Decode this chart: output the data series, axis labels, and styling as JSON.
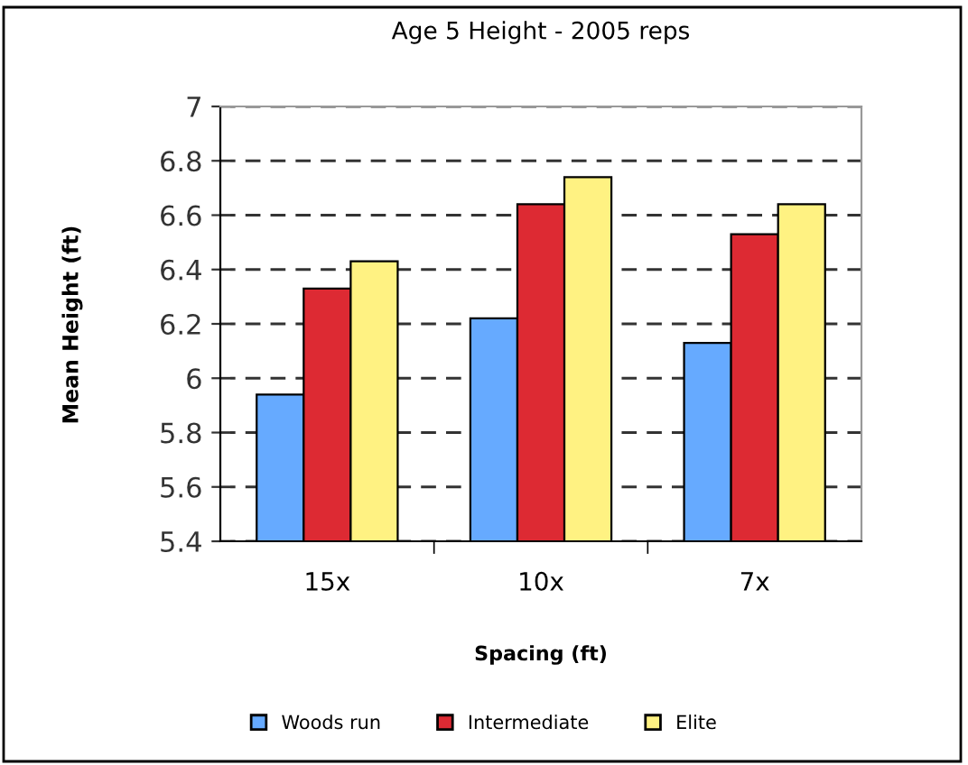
{
  "chart_data": {
    "type": "bar",
    "title": "Age 5 Height - 2005 reps",
    "xlabel": "Spacing (ft)",
    "ylabel": "Mean Height (ft)",
    "categories": [
      "15x",
      "10x",
      "7x"
    ],
    "series": [
      {
        "name": "Woods run",
        "color": "#66aaff",
        "values": [
          5.94,
          6.22,
          6.13
        ]
      },
      {
        "name": "Intermediate",
        "color": "#dd2a33",
        "values": [
          6.33,
          6.64,
          6.53
        ]
      },
      {
        "name": "Elite",
        "color": "#fff282",
        "values": [
          6.43,
          6.74,
          6.64
        ]
      }
    ],
    "ylim": [
      5.4,
      7
    ],
    "yticks": [
      5.4,
      5.6,
      5.8,
      6,
      6.2,
      6.4,
      6.6,
      6.8,
      7
    ],
    "grid": "y",
    "legend": "bottom"
  }
}
